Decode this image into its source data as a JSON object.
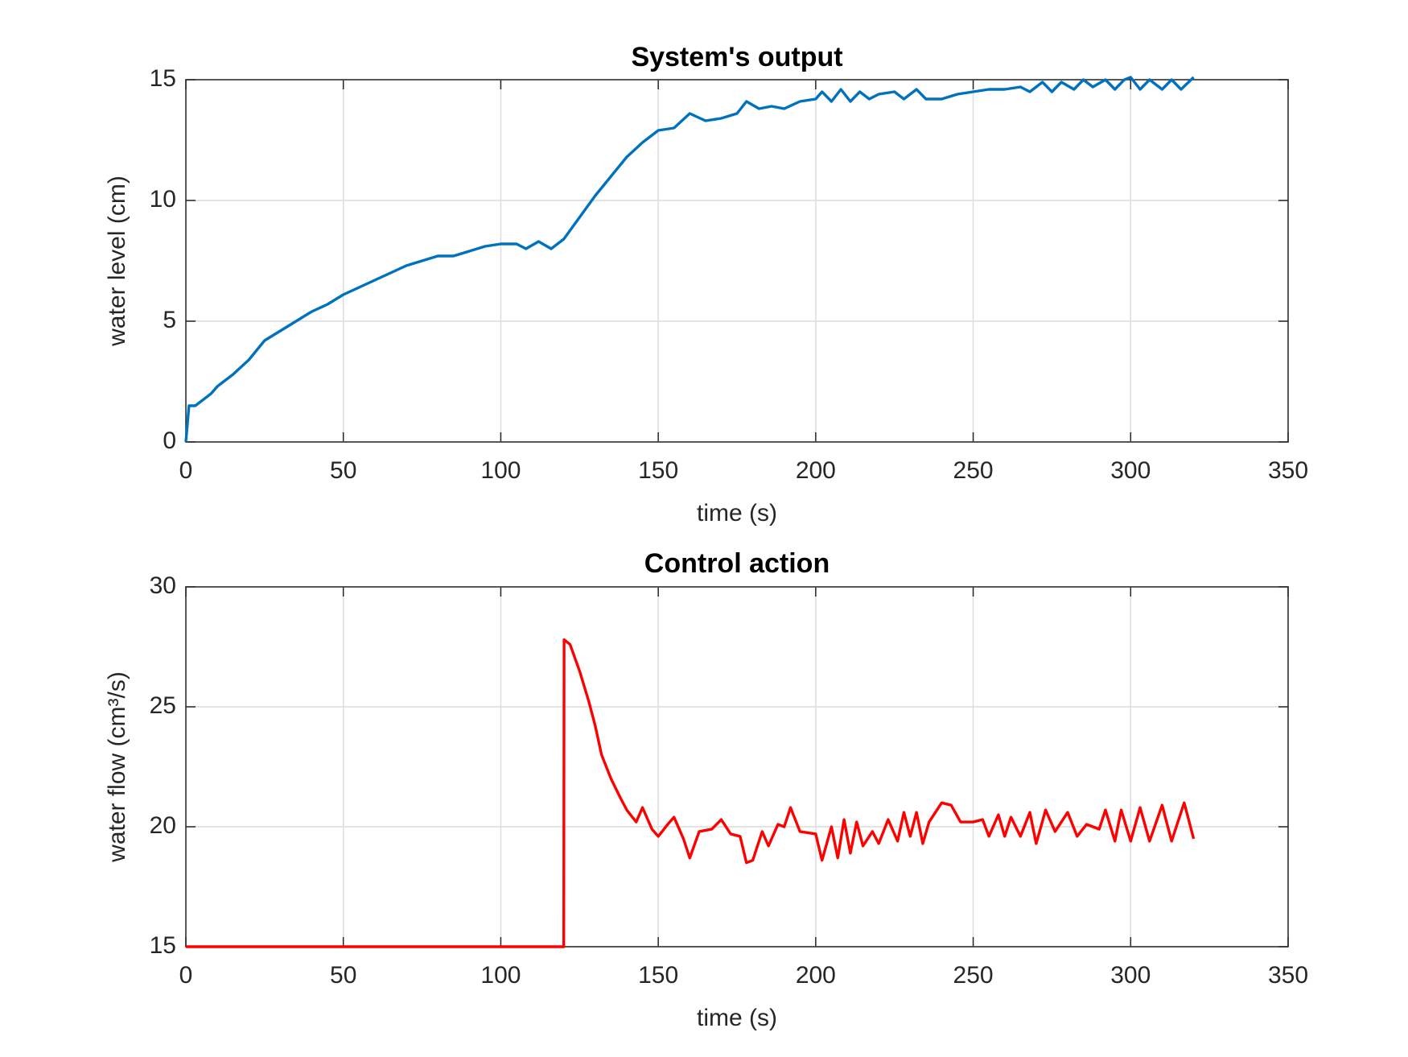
{
  "chart_data": [
    {
      "type": "line",
      "title": "System's output",
      "xlabel": "time (s)",
      "ylabel": "water level (cm)",
      "xlim": [
        0,
        350
      ],
      "ylim": [
        0,
        15
      ],
      "xticks": [
        0,
        50,
        100,
        150,
        200,
        250,
        300,
        350
      ],
      "yticks": [
        0,
        5,
        10,
        15
      ],
      "grid": true,
      "x": [
        0,
        1,
        3,
        5,
        8,
        10,
        15,
        20,
        25,
        30,
        35,
        40,
        45,
        50,
        55,
        60,
        65,
        70,
        75,
        80,
        85,
        90,
        95,
        100,
        105,
        108,
        112,
        116,
        120,
        125,
        130,
        135,
        140,
        145,
        150,
        155,
        160,
        165,
        170,
        175,
        178,
        182,
        186,
        190,
        195,
        200,
        202,
        205,
        208,
        211,
        214,
        217,
        220,
        225,
        228,
        232,
        235,
        240,
        245,
        250,
        255,
        260,
        265,
        268,
        272,
        275,
        278,
        282,
        285,
        288,
        292,
        295,
        298,
        300,
        303,
        306,
        310,
        313,
        316,
        320
      ],
      "series": [
        {
          "name": "water level",
          "color": "#0072bd",
          "values": [
            0,
            1.5,
            1.5,
            1.7,
            2.0,
            2.3,
            2.8,
            3.4,
            4.2,
            4.6,
            5.0,
            5.4,
            5.7,
            6.1,
            6.4,
            6.7,
            7.0,
            7.3,
            7.5,
            7.7,
            7.7,
            7.9,
            8.1,
            8.2,
            8.2,
            8.0,
            8.3,
            8.0,
            8.4,
            9.3,
            10.2,
            11.0,
            11.8,
            12.4,
            12.9,
            13.0,
            13.6,
            13.3,
            13.4,
            13.6,
            14.1,
            13.8,
            13.9,
            13.8,
            14.1,
            14.2,
            14.5,
            14.1,
            14.6,
            14.1,
            14.5,
            14.2,
            14.4,
            14.5,
            14.2,
            14.6,
            14.2,
            14.2,
            14.4,
            14.5,
            14.6,
            14.6,
            14.7,
            14.5,
            14.9,
            14.5,
            14.9,
            14.6,
            15.0,
            14.7,
            15.0,
            14.6,
            15.0,
            15.1,
            14.6,
            15.0,
            14.6,
            15.0,
            14.6,
            15.1
          ]
        }
      ]
    },
    {
      "type": "line",
      "title": "Control action",
      "xlabel": "time (s)",
      "ylabel": "water flow (cm³/s)",
      "xlim": [
        0,
        350
      ],
      "ylim": [
        15,
        30
      ],
      "xticks": [
        0,
        50,
        100,
        150,
        200,
        250,
        300,
        350
      ],
      "yticks": [
        15,
        20,
        25,
        30
      ],
      "grid": true,
      "x": [
        0,
        120,
        120.1,
        122,
        125,
        128,
        130,
        132,
        135,
        138,
        140,
        143,
        145,
        148,
        150,
        153,
        155,
        158,
        160,
        163,
        167,
        170,
        173,
        176,
        178,
        180,
        183,
        185,
        188,
        190,
        192,
        195,
        200,
        202,
        205,
        207,
        209,
        211,
        213,
        215,
        218,
        220,
        223,
        226,
        228,
        230,
        232,
        234,
        236,
        240,
        243,
        246,
        250,
        253,
        255,
        258,
        260,
        262,
        265,
        268,
        270,
        273,
        276,
        280,
        283,
        286,
        290,
        292,
        295,
        297,
        300,
        303,
        306,
        310,
        313,
        317,
        320
      ],
      "series": [
        {
          "name": "water flow",
          "color": "#ff0000",
          "values": [
            15,
            15,
            27.8,
            27.6,
            26.5,
            25.2,
            24.2,
            23.0,
            22.0,
            21.2,
            20.7,
            20.2,
            20.8,
            19.9,
            19.6,
            20.1,
            20.4,
            19.5,
            18.7,
            19.8,
            19.9,
            20.3,
            19.7,
            19.6,
            18.5,
            18.6,
            19.8,
            19.2,
            20.1,
            20.0,
            20.8,
            19.8,
            19.7,
            18.6,
            20.0,
            18.7,
            20.3,
            18.9,
            20.2,
            19.2,
            19.8,
            19.3,
            20.3,
            19.4,
            20.6,
            19.6,
            20.6,
            19.3,
            20.2,
            21.0,
            20.9,
            20.2,
            20.2,
            20.3,
            19.6,
            20.5,
            19.6,
            20.4,
            19.6,
            20.6,
            19.3,
            20.7,
            19.8,
            20.6,
            19.6,
            20.1,
            19.9,
            20.7,
            19.4,
            20.7,
            19.4,
            20.8,
            19.4,
            20.9,
            19.4,
            21.0,
            19.5
          ]
        }
      ]
    }
  ]
}
